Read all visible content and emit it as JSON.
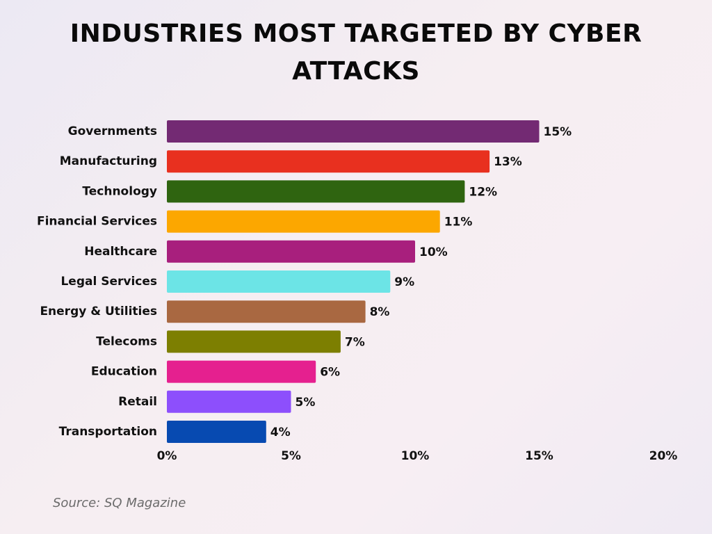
{
  "title": "INDUSTRIES MOST TARGETED BY CYBER ATTACKS",
  "source": "Source: SQ Magazine",
  "chart_data": {
    "type": "bar",
    "orientation": "horizontal",
    "categories": [
      "Governments",
      "Manufacturing",
      "Technology",
      "Financial Services",
      "Healthcare",
      "Legal Services",
      "Energy & Utilities",
      "Telecoms",
      "Education",
      "Retail",
      "Transportation"
    ],
    "values": [
      15,
      13,
      12,
      11,
      10,
      9,
      8,
      7,
      6,
      5,
      4
    ],
    "value_labels": [
      "15%",
      "13%",
      "12%",
      "11%",
      "10%",
      "9%",
      "8%",
      "7%",
      "6%",
      "5%",
      "4%"
    ],
    "colors": [
      "#732a73",
      "#e8301f",
      "#2f6410",
      "#fca700",
      "#a81f7d",
      "#6ce4e6",
      "#a96841",
      "#7d7f01",
      "#e5208f",
      "#8d4ffc",
      "#074ab1"
    ],
    "xlim": [
      0,
      20
    ],
    "xticks": [
      0,
      5,
      10,
      15,
      20
    ],
    "xtick_labels": [
      "0%",
      "5%",
      "10%",
      "15%",
      "20%"
    ],
    "grid": false,
    "legend": "none"
  }
}
